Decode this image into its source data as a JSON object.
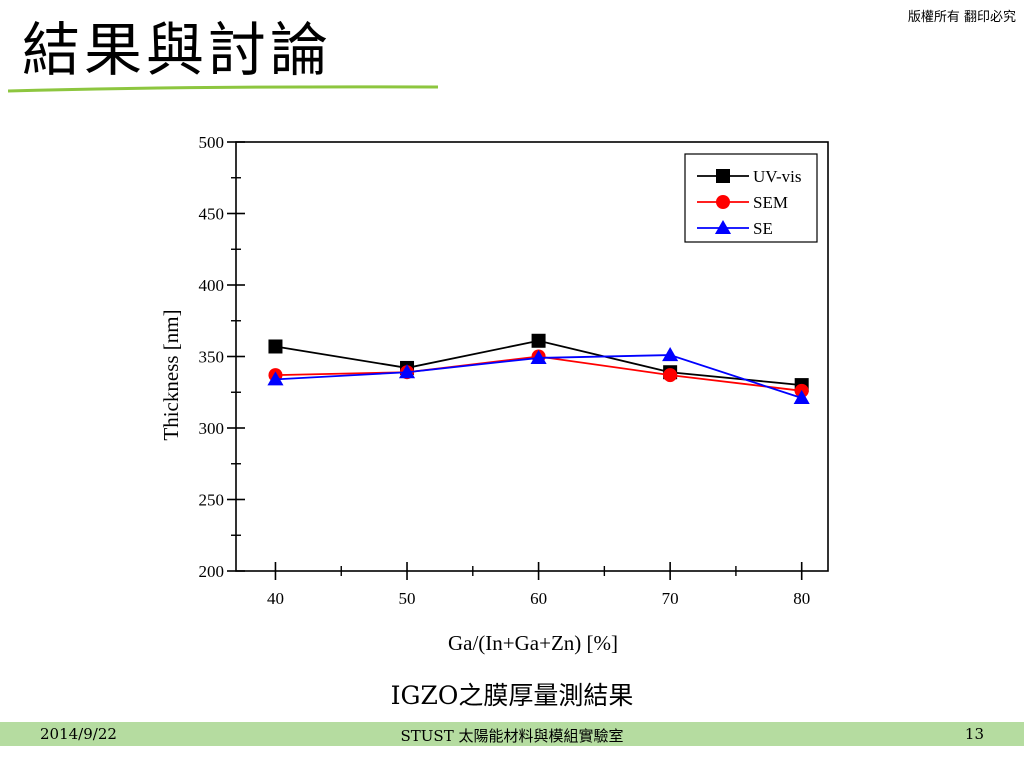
{
  "slide": {
    "title": "結果與討論",
    "copyright": "版權所有 翻印必究",
    "caption": "IGZO之膜厚量測結果"
  },
  "footer": {
    "date": "2014/9/22",
    "center": "STUST 太陽能材料與模組實驗室",
    "page": "13"
  },
  "colors": {
    "accent_green": "#8dc63f",
    "footer_green": "#b5dca0"
  },
  "chart_data": {
    "type": "line",
    "xlabel": "Ga/(In+Ga+Zn) [%]",
    "ylabel": "Thickness [nm]",
    "x": [
      40,
      50,
      60,
      70,
      80
    ],
    "xticks": [
      "40",
      "50",
      "60",
      "70",
      "80"
    ],
    "yticks": [
      "200",
      "250",
      "300",
      "350",
      "400",
      "450",
      "500"
    ],
    "xlim": [
      37,
      82
    ],
    "ylim": [
      200,
      500
    ],
    "legend_position": "top-right",
    "grid": false,
    "series": [
      {
        "name": "UV-vis",
        "values": [
          357,
          342,
          361,
          339,
          330
        ],
        "color": "#000000",
        "marker": "square"
      },
      {
        "name": "SEM",
        "values": [
          337,
          339,
          350,
          337,
          326
        ],
        "color": "#ff0000",
        "marker": "circle"
      },
      {
        "name": "SE",
        "values": [
          334,
          339,
          349,
          351,
          321
        ],
        "color": "#0000ff",
        "marker": "triangle"
      }
    ]
  }
}
